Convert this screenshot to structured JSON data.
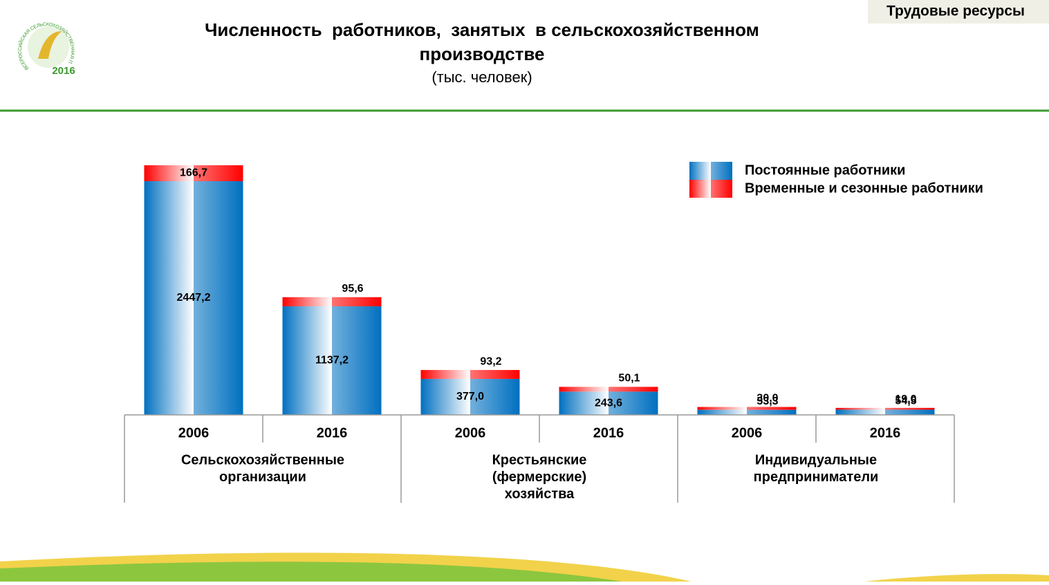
{
  "header": {
    "section": "Трудовые ресурсы",
    "logo_text": "ВСЕРОССИЙСКАЯ СЕЛЬСКОХОЗЯЙСТВЕННАЯ ПЕРЕПИСЬ",
    "logo_year": "2016"
  },
  "chart_data": {
    "type": "bar",
    "stacked": true,
    "title": [
      "Численность  работников,  занятых  в сельскохозяйственном",
      "производстве"
    ],
    "subtitle": "(тыс. человек)",
    "categories": [
      "2006",
      "2016",
      "2006",
      "2016",
      "2006",
      "2016"
    ],
    "groups": [
      [
        "Сельскохозяйственные",
        "организации"
      ],
      [
        "Крестьянские",
        "(фермерские)",
        "хозяйства"
      ],
      [
        "Индивидуальные",
        "предприниматели"
      ]
    ],
    "series": [
      {
        "name": "Постоянные работники",
        "color": "#0070c0",
        "values": [
          2447.2,
          1137.2,
          377.0,
          243.6,
          53.3,
          54.5
        ],
        "value_labels": [
          "2447,2",
          "1137,2",
          "377,0",
          "243,6",
          "53,3",
          "54,5"
        ]
      },
      {
        "name": "Временные и сезонные работники",
        "color": "#ff0000",
        "values": [
          166.7,
          95.6,
          93.2,
          50.1,
          30.0,
          19.0
        ],
        "value_labels": [
          "166,7",
          "95,6",
          "93,2",
          "50,1",
          "30,0",
          "19,0"
        ]
      }
    ],
    "legend": "top-right"
  }
}
